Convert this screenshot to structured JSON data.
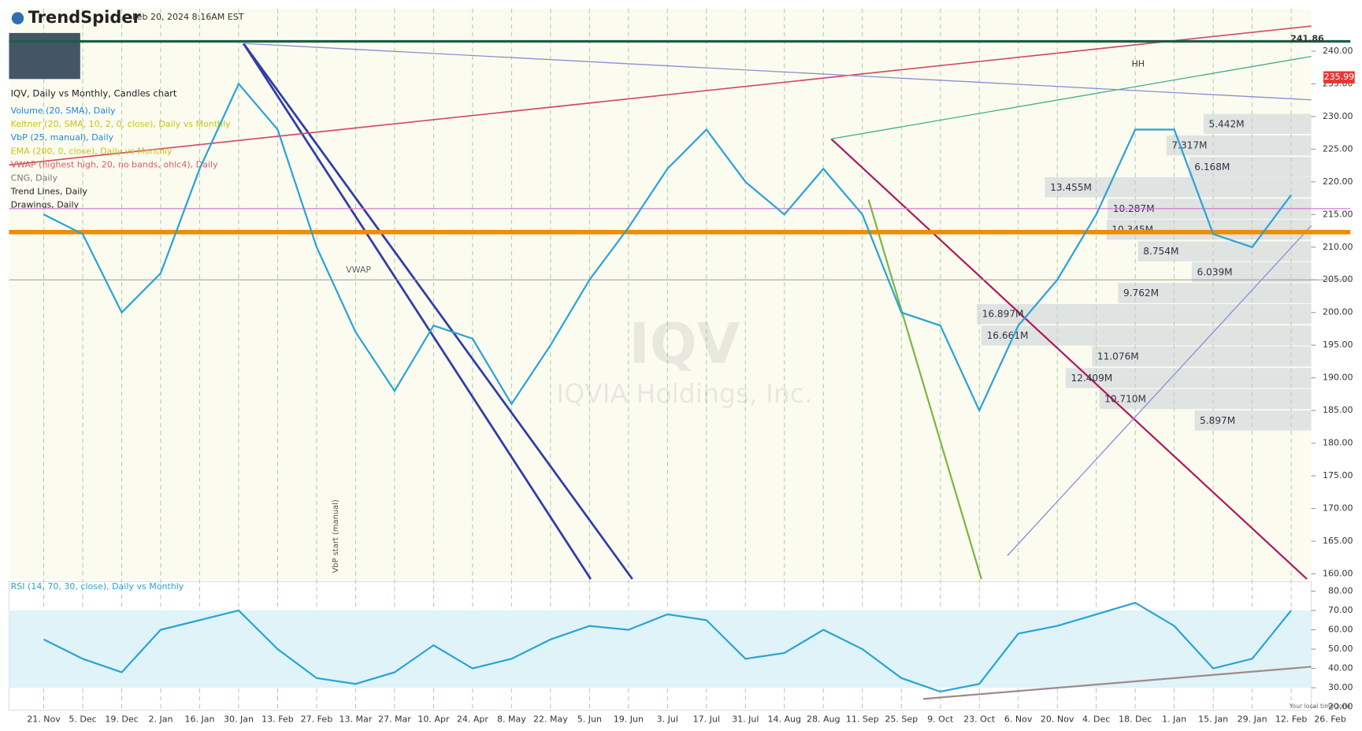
{
  "header": {
    "brand": "TrendSpider",
    "timestamp": "Feb 20, 2024 8:16AM EST",
    "chart_title": "IQV, Daily vs Monthly, Candles chart"
  },
  "indicators": [
    {
      "text": "Volume (20, SMA), Daily",
      "color": "#1e88e5"
    },
    {
      "text": "Keltner (20, SMA, 10, 2, 0, close), Daily vs Monthly",
      "color": "#c9c21a"
    },
    {
      "text": "VbP (25, manual), Daily",
      "color": "#1e88e5"
    },
    {
      "text": "EMA (200, 0, close), Daily vs Monthly",
      "color": "#c9c21a"
    },
    {
      "text": "VWAP (highest high, 20, no bands, ohlc4), Daily",
      "color": "#e05a5a"
    },
    {
      "text": "CNG, Daily",
      "color": "#777777"
    },
    {
      "text": "Trend Lines, Daily",
      "color": "#222222"
    },
    {
      "text": "Drawings, Daily",
      "color": "#222222"
    }
  ],
  "watermark": {
    "symbol": "IQV",
    "name": "IQVIA Holdings, Inc."
  },
  "annotations": {
    "vwap": "VWAP",
    "hh": "HH",
    "vbp_start": "VbP start (manual)",
    "timezone": "Your local time zone"
  },
  "chart_data": [
    {
      "type": "line",
      "color": "#29a3d6",
      "categories": [
        "21. Nov",
        "5. Dec",
        "19. Dec",
        "2. Jan",
        "16. Jan",
        "30. Jan",
        "13. Feb",
        "27. Feb",
        "13. Mar",
        "27. Mar",
        "10. Apr",
        "24. Apr",
        "8. May",
        "22. May",
        "5. Jun",
        "19. Jun",
        "3. Jul",
        "17. Jul",
        "31. Jul",
        "14. Aug",
        "28. Aug",
        "11. Sep",
        "25. Sep",
        "9. Oct",
        "23. Oct",
        "6. Nov",
        "20. Nov",
        "4. Dec",
        "18. Dec",
        "1. Jan",
        "15. Jan",
        "29. Jan",
        "12. Feb",
        "26. Feb"
      ],
      "values": [
        215,
        212,
        200,
        206,
        222,
        235,
        228,
        210,
        197,
        188,
        198,
        196,
        186,
        195,
        205,
        213,
        222,
        228,
        220,
        215,
        222,
        215,
        200,
        198,
        185,
        198,
        205,
        215,
        228,
        228,
        212,
        210,
        218,
        null
      ],
      "ylim": [
        159.2,
        246.5
      ],
      "yticks": [
        {
          "value": 160,
          "label": "160.00"
        },
        {
          "value": 165,
          "label": "165.00"
        },
        {
          "value": 170,
          "label": "170.00"
        },
        {
          "value": 175,
          "label": "175.00"
        },
        {
          "value": 180,
          "label": "180.00"
        },
        {
          "value": 185,
          "label": "185.00"
        },
        {
          "value": 190,
          "label": "190.00"
        },
        {
          "value": 195,
          "label": "195.00"
        },
        {
          "value": 200,
          "label": "200.00"
        },
        {
          "value": 205,
          "label": "205.00"
        },
        {
          "value": 210,
          "label": "210.00"
        },
        {
          "value": 215,
          "label": "215.00"
        },
        {
          "value": 220,
          "label": "220.00"
        },
        {
          "value": 225,
          "label": "225.00"
        },
        {
          "value": 230,
          "label": "230.00"
        },
        {
          "value": 235,
          "label": "235.00"
        },
        {
          "value": 240,
          "label": "240.00"
        }
      ],
      "last_price": 241.86,
      "price_badge": 235.99,
      "hlines": [
        {
          "value": 241.5,
          "color": "#1b5e4a"
        },
        {
          "value": 212.3,
          "color": "#f08c00"
        },
        {
          "value": 205.0,
          "color": "#999999"
        },
        {
          "value": 215.9,
          "color": "#d070d0"
        }
      ],
      "volume_profile": [
        {
          "label": "5.442M",
          "value": 5.442,
          "price": 228.8
        },
        {
          "label": "7.317M",
          "value": 7.317,
          "price": 225.5
        },
        {
          "label": "6.168M",
          "value": 6.168,
          "price": 222.2
        },
        {
          "label": "13.455M",
          "value": 13.455,
          "price": 219.1
        },
        {
          "label": "10.287M",
          "value": 10.287,
          "price": 215.8
        },
        {
          "label": "10.345M",
          "value": 10.345,
          "price": 212.6
        },
        {
          "label": "8.754M",
          "value": 8.754,
          "price": 209.3
        },
        {
          "label": "6.039M",
          "value": 6.039,
          "price": 206.1
        },
        {
          "label": "9.762M",
          "value": 9.762,
          "price": 202.9
        },
        {
          "label": "16.897M",
          "value": 16.897,
          "price": 199.7
        },
        {
          "label": "16.661M",
          "value": 16.661,
          "price": 196.4
        },
        {
          "label": "11.076M",
          "value": 11.076,
          "price": 193.2
        },
        {
          "label": "12.409M",
          "value": 12.409,
          "price": 189.9
        },
        {
          "label": "10.710M",
          "value": 10.71,
          "price": 186.7
        },
        {
          "label": "5.897M",
          "value": 5.897,
          "price": 183.4
        }
      ]
    },
    {
      "type": "line",
      "title": "RSI (14, 70, 30, close), Daily vs Monthly",
      "color": "#29a3d6",
      "values": [
        55,
        45,
        38,
        60,
        65,
        70,
        50,
        35,
        32,
        38,
        52,
        40,
        45,
        55,
        62,
        60,
        68,
        65,
        45,
        48,
        60,
        50,
        35,
        28,
        32,
        58,
        62,
        68,
        74,
        62,
        40,
        45,
        70,
        null
      ],
      "ylim": [
        18.4,
        84.9
      ],
      "yticks": [
        {
          "value": 20,
          "label": "20.00"
        },
        {
          "value": 30,
          "label": "30.00"
        },
        {
          "value": 40,
          "label": "40.00"
        },
        {
          "value": 50,
          "label": "50.00"
        },
        {
          "value": 60,
          "label": "60.00"
        },
        {
          "value": 70,
          "label": "70.00"
        },
        {
          "value": 80,
          "label": "80.00"
        }
      ],
      "levels": [
        30,
        70
      ]
    }
  ]
}
